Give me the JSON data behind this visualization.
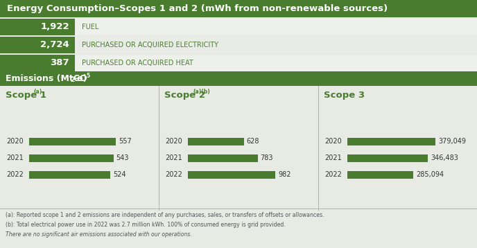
{
  "title": "Energy Consumption–Scopes 1 and 2 (mWh from non-renewable sources)",
  "title_bg": "#4a7c2f",
  "title_color": "#ffffff",
  "metrics": [
    {
      "value": "1,922",
      "label": "FUEL"
    },
    {
      "value": "2,724",
      "label": "PURCHASED OR ACQUIRED ELECTRICITY"
    },
    {
      "value": "387",
      "label": "PURCHASED OR ACQUIRED HEAT"
    }
  ],
  "metric_value_bg": "#4a7c2f",
  "metric_value_color": "#ffffff",
  "metric_label_color": "#4a7c2f",
  "metric_row_bg_alt": [
    "#eef0ec",
    "#e8ebe6",
    "#eef0ec"
  ],
  "emissions_bg": "#4a7c2f",
  "emissions_color": "#ffffff",
  "scope_titles": [
    "Scope 1",
    "Scope 2",
    "Scope 3"
  ],
  "scope_sups": [
    "(a)",
    "(a)(b)",
    ""
  ],
  "scope_years": [
    [
      "2020",
      "2021",
      "2022"
    ],
    [
      "2020",
      "2021",
      "2022"
    ],
    [
      "2020",
      "2021",
      "2022"
    ]
  ],
  "scope_values": [
    [
      557,
      543,
      524
    ],
    [
      628,
      783,
      982
    ],
    [
      379049,
      346483,
      285094
    ]
  ],
  "scope_labels": [
    [
      "557",
      "543",
      "524"
    ],
    [
      "628",
      "783",
      "982"
    ],
    [
      "379,049",
      "346,483",
      "285,094"
    ]
  ],
  "scope_max": [
    600,
    1050,
    400000
  ],
  "bar_color": "#4a7c2f",
  "scope_title_color": "#4a7c2f",
  "year_color": "#333333",
  "value_color": "#333333",
  "divider_color": "#b0b8a8",
  "footnote_a": "(a): Reported scope 1 and 2 emissions are independent of any purchases, sales, or transfers of offsets or allowances.",
  "footnote_b": "(b): Total electrical power use in 2022 was 2.7 million kWh. 100% of consumed energy is grid provided.",
  "footnote_c": "There are no significant air emissions associated with our operations.",
  "footnote_color": "#555555",
  "background_color": "#e8ebe4"
}
